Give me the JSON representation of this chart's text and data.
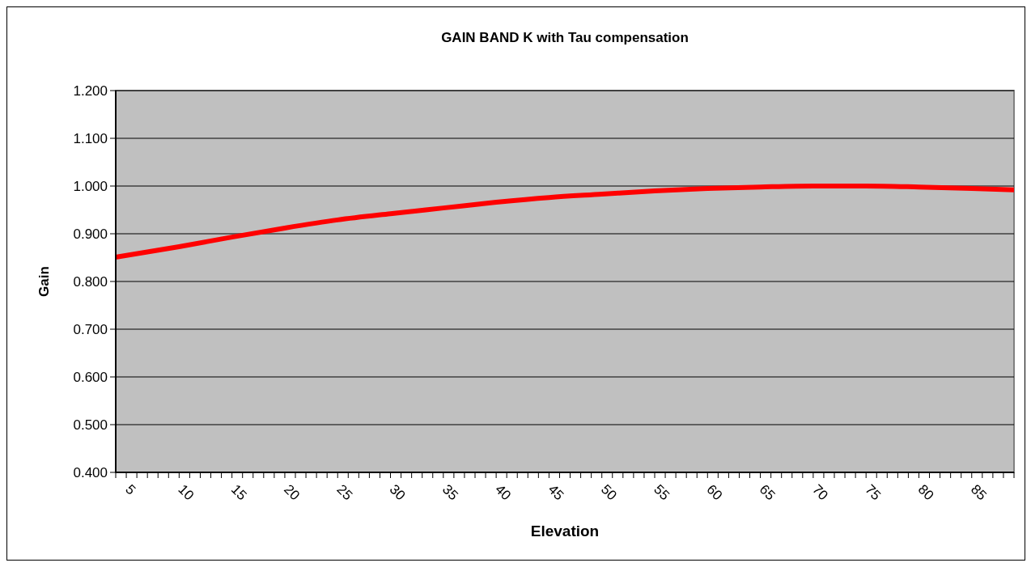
{
  "chart_data": {
    "type": "line",
    "title": "GAIN BAND K with Tau compensation",
    "xlabel": "Elevation",
    "ylabel": "Gain",
    "x": [
      4,
      10,
      15,
      20,
      25,
      30,
      35,
      40,
      45,
      50,
      55,
      60,
      65,
      70,
      75,
      80,
      85,
      89
    ],
    "series": [
      {
        "color": "#ff0000",
        "values": [
          0.851,
          0.873,
          0.893,
          0.912,
          0.929,
          0.942,
          0.954,
          0.966,
          0.976,
          0.983,
          0.99,
          0.995,
          0.998,
          1.0,
          1.0,
          0.998,
          0.995,
          0.992
        ]
      }
    ],
    "xlim": [
      4,
      89
    ],
    "xticks": [
      {
        "value": 4,
        "label": null
      },
      5,
      {
        "value": 6,
        "label": null
      },
      {
        "value": 7,
        "label": null
      },
      {
        "value": 8,
        "label": null
      },
      {
        "value": 9,
        "label": null
      },
      10,
      {
        "value": 11,
        "label": null
      },
      {
        "value": 12,
        "label": null
      },
      {
        "value": 13,
        "label": null
      },
      {
        "value": 14,
        "label": null
      },
      15,
      {
        "value": 16,
        "label": null
      },
      {
        "value": 17,
        "label": null
      },
      {
        "value": 18,
        "label": null
      },
      {
        "value": 19,
        "label": null
      },
      20,
      {
        "value": 21,
        "label": null
      },
      {
        "value": 22,
        "label": null
      },
      {
        "value": 23,
        "label": null
      },
      {
        "value": 24,
        "label": null
      },
      25,
      {
        "value": 26,
        "label": null
      },
      {
        "value": 27,
        "label": null
      },
      {
        "value": 28,
        "label": null
      },
      {
        "value": 29,
        "label": null
      },
      30,
      {
        "value": 31,
        "label": null
      },
      {
        "value": 32,
        "label": null
      },
      {
        "value": 33,
        "label": null
      },
      {
        "value": 34,
        "label": null
      },
      35,
      {
        "value": 36,
        "label": null
      },
      {
        "value": 37,
        "label": null
      },
      {
        "value": 38,
        "label": null
      },
      {
        "value": 39,
        "label": null
      },
      40,
      {
        "value": 41,
        "label": null
      },
      {
        "value": 42,
        "label": null
      },
      {
        "value": 43,
        "label": null
      },
      {
        "value": 44,
        "label": null
      },
      45,
      {
        "value": 46,
        "label": null
      },
      {
        "value": 47,
        "label": null
      },
      {
        "value": 48,
        "label": null
      },
      {
        "value": 49,
        "label": null
      },
      50,
      {
        "value": 51,
        "label": null
      },
      {
        "value": 52,
        "label": null
      },
      {
        "value": 53,
        "label": null
      },
      {
        "value": 54,
        "label": null
      },
      55,
      {
        "value": 56,
        "label": null
      },
      {
        "value": 57,
        "label": null
      },
      {
        "value": 58,
        "label": null
      },
      {
        "value": 59,
        "label": null
      },
      60,
      {
        "value": 61,
        "label": null
      },
      {
        "value": 62,
        "label": null
      },
      {
        "value": 63,
        "label": null
      },
      {
        "value": 64,
        "label": null
      },
      65,
      {
        "value": 66,
        "label": null
      },
      {
        "value": 67,
        "label": null
      },
      {
        "value": 68,
        "label": null
      },
      {
        "value": 69,
        "label": null
      },
      70,
      {
        "value": 71,
        "label": null
      },
      {
        "value": 72,
        "label": null
      },
      {
        "value": 73,
        "label": null
      },
      {
        "value": 74,
        "label": null
      },
      75,
      {
        "value": 76,
        "label": null
      },
      {
        "value": 77,
        "label": null
      },
      {
        "value": 78,
        "label": null
      },
      {
        "value": 79,
        "label": null
      },
      80,
      {
        "value": 81,
        "label": null
      },
      {
        "value": 82,
        "label": null
      },
      {
        "value": 83,
        "label": null
      },
      {
        "value": 84,
        "label": null
      },
      85,
      {
        "value": 86,
        "label": null
      },
      {
        "value": 87,
        "label": null
      },
      {
        "value": 88,
        "label": null
      },
      {
        "value": 89,
        "label": null
      }
    ],
    "ylim": [
      0.4,
      1.2
    ],
    "yticks": [
      {
        "value": 0.4,
        "label": "0.400"
      },
      {
        "value": 0.5,
        "label": "0.500"
      },
      {
        "value": 0.6,
        "label": "0.600"
      },
      {
        "value": 0.7,
        "label": "0.700"
      },
      {
        "value": 0.8,
        "label": "0.800"
      },
      {
        "value": 0.9,
        "label": "0.900"
      },
      {
        "value": 1.0,
        "label": "1.000"
      },
      {
        "value": 1.1,
        "label": "1.100"
      },
      {
        "value": 1.2,
        "label": "1.200"
      }
    ],
    "grid": "y",
    "marker": "none",
    "line_style": "solid"
  }
}
